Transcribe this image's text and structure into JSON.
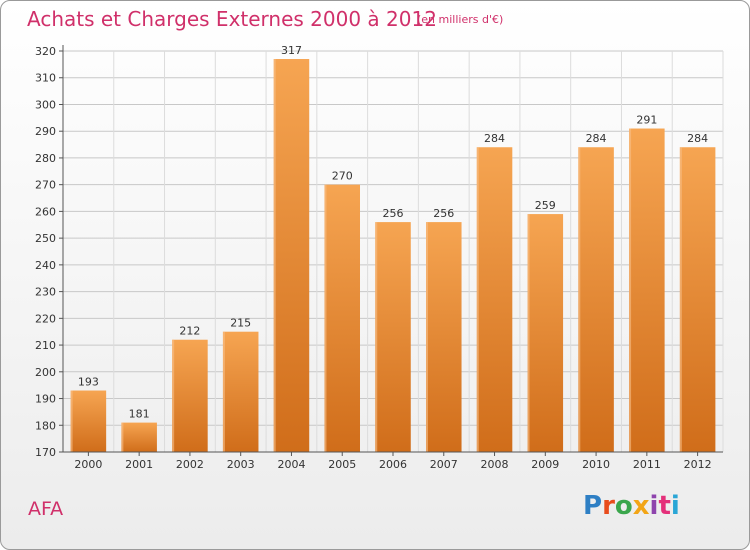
{
  "header": {
    "title": "Achats et Charges Externes 2000 à 2012",
    "subtitle": "(en milliers d'€)"
  },
  "footer": {
    "commune": "AFA",
    "logo_text": "Proxiti",
    "logo_colors": [
      "#2e7fc4",
      "#e84c1c",
      "#3aa64c",
      "#f2a516",
      "#8e44ad",
      "#e4307a",
      "#2aa6d6"
    ]
  },
  "colors": {
    "bar_light": "#f6a552",
    "bar_dark": "#d06d1a",
    "title": "#d0306a"
  },
  "chart_data": {
    "type": "bar",
    "categories": [
      "2000",
      "2001",
      "2002",
      "2003",
      "2004",
      "2005",
      "2006",
      "2007",
      "2008",
      "2009",
      "2010",
      "2011",
      "2012"
    ],
    "values": [
      193,
      181,
      212,
      215,
      317,
      270,
      256,
      256,
      284,
      259,
      284,
      291,
      284
    ],
    "ylim": [
      170,
      320
    ],
    "yticks": [
      170,
      180,
      190,
      200,
      210,
      220,
      230,
      240,
      250,
      260,
      270,
      280,
      290,
      300,
      310,
      320
    ],
    "grid": true,
    "data_labels": true
  }
}
